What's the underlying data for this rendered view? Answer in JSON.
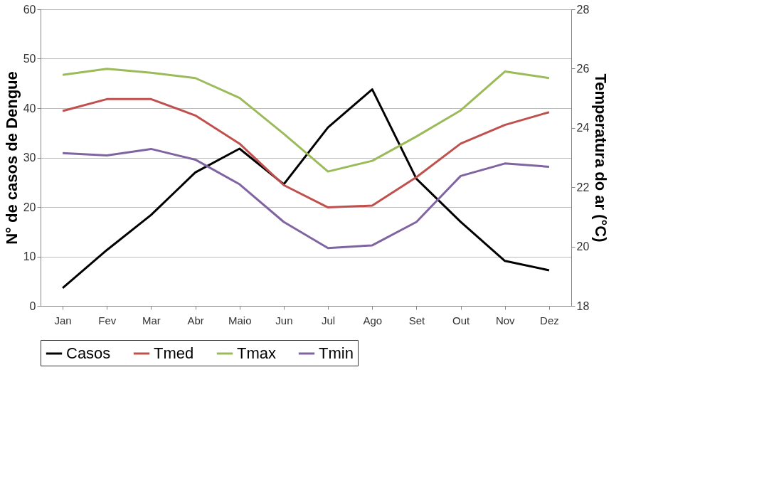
{
  "chart_data": {
    "type": "line",
    "ylabel": "N° de casos de Dengue",
    "y2label": "Temperatura do ar (°C)",
    "categories": [
      "Jan",
      "Fev",
      "Mar",
      "Abr",
      "Maio",
      "Jun",
      "Jul",
      "Ago",
      "Set",
      "Out",
      "Nov",
      "Dez"
    ],
    "series": [
      {
        "name": "Casos",
        "color": "#000000",
        "values": [
          3.6,
          11.3,
          18.4,
          27,
          31.8,
          24.6,
          36.1,
          43.8,
          25.7,
          17,
          9.1,
          7.2
        ]
      },
      {
        "name": "Tmed",
        "color": "#c0504d",
        "axis": "y2",
        "values": [
          24.57,
          24.97,
          24.97,
          24.42,
          23.47,
          22.07,
          21.32,
          21.38,
          22.34,
          23.47,
          24.1,
          24.53
        ]
      },
      {
        "name": "Tmax",
        "color": "#9bbb59",
        "axis": "y2",
        "values": [
          25.79,
          25.99,
          25.86,
          25.68,
          25.01,
          23.8,
          22.53,
          22.89,
          23.71,
          24.59,
          25.9,
          25.68
        ]
      },
      {
        "name": "Tmin",
        "color": "#8064a2",
        "axis": "y2",
        "values": [
          23.15,
          23.07,
          23.29,
          22.93,
          22.1,
          20.83,
          19.95,
          20.04,
          20.83,
          22.38,
          22.8,
          22.69
        ]
      }
    ],
    "ylim": [
      0,
      60
    ],
    "yticks": [
      0,
      10,
      20,
      30,
      40,
      50,
      60
    ],
    "y2lim": [
      18,
      28
    ],
    "y2ticks": [
      18,
      20,
      22,
      24,
      26,
      28
    ],
    "grid": "y",
    "legend": "bottom",
    "line_style": "solid"
  }
}
